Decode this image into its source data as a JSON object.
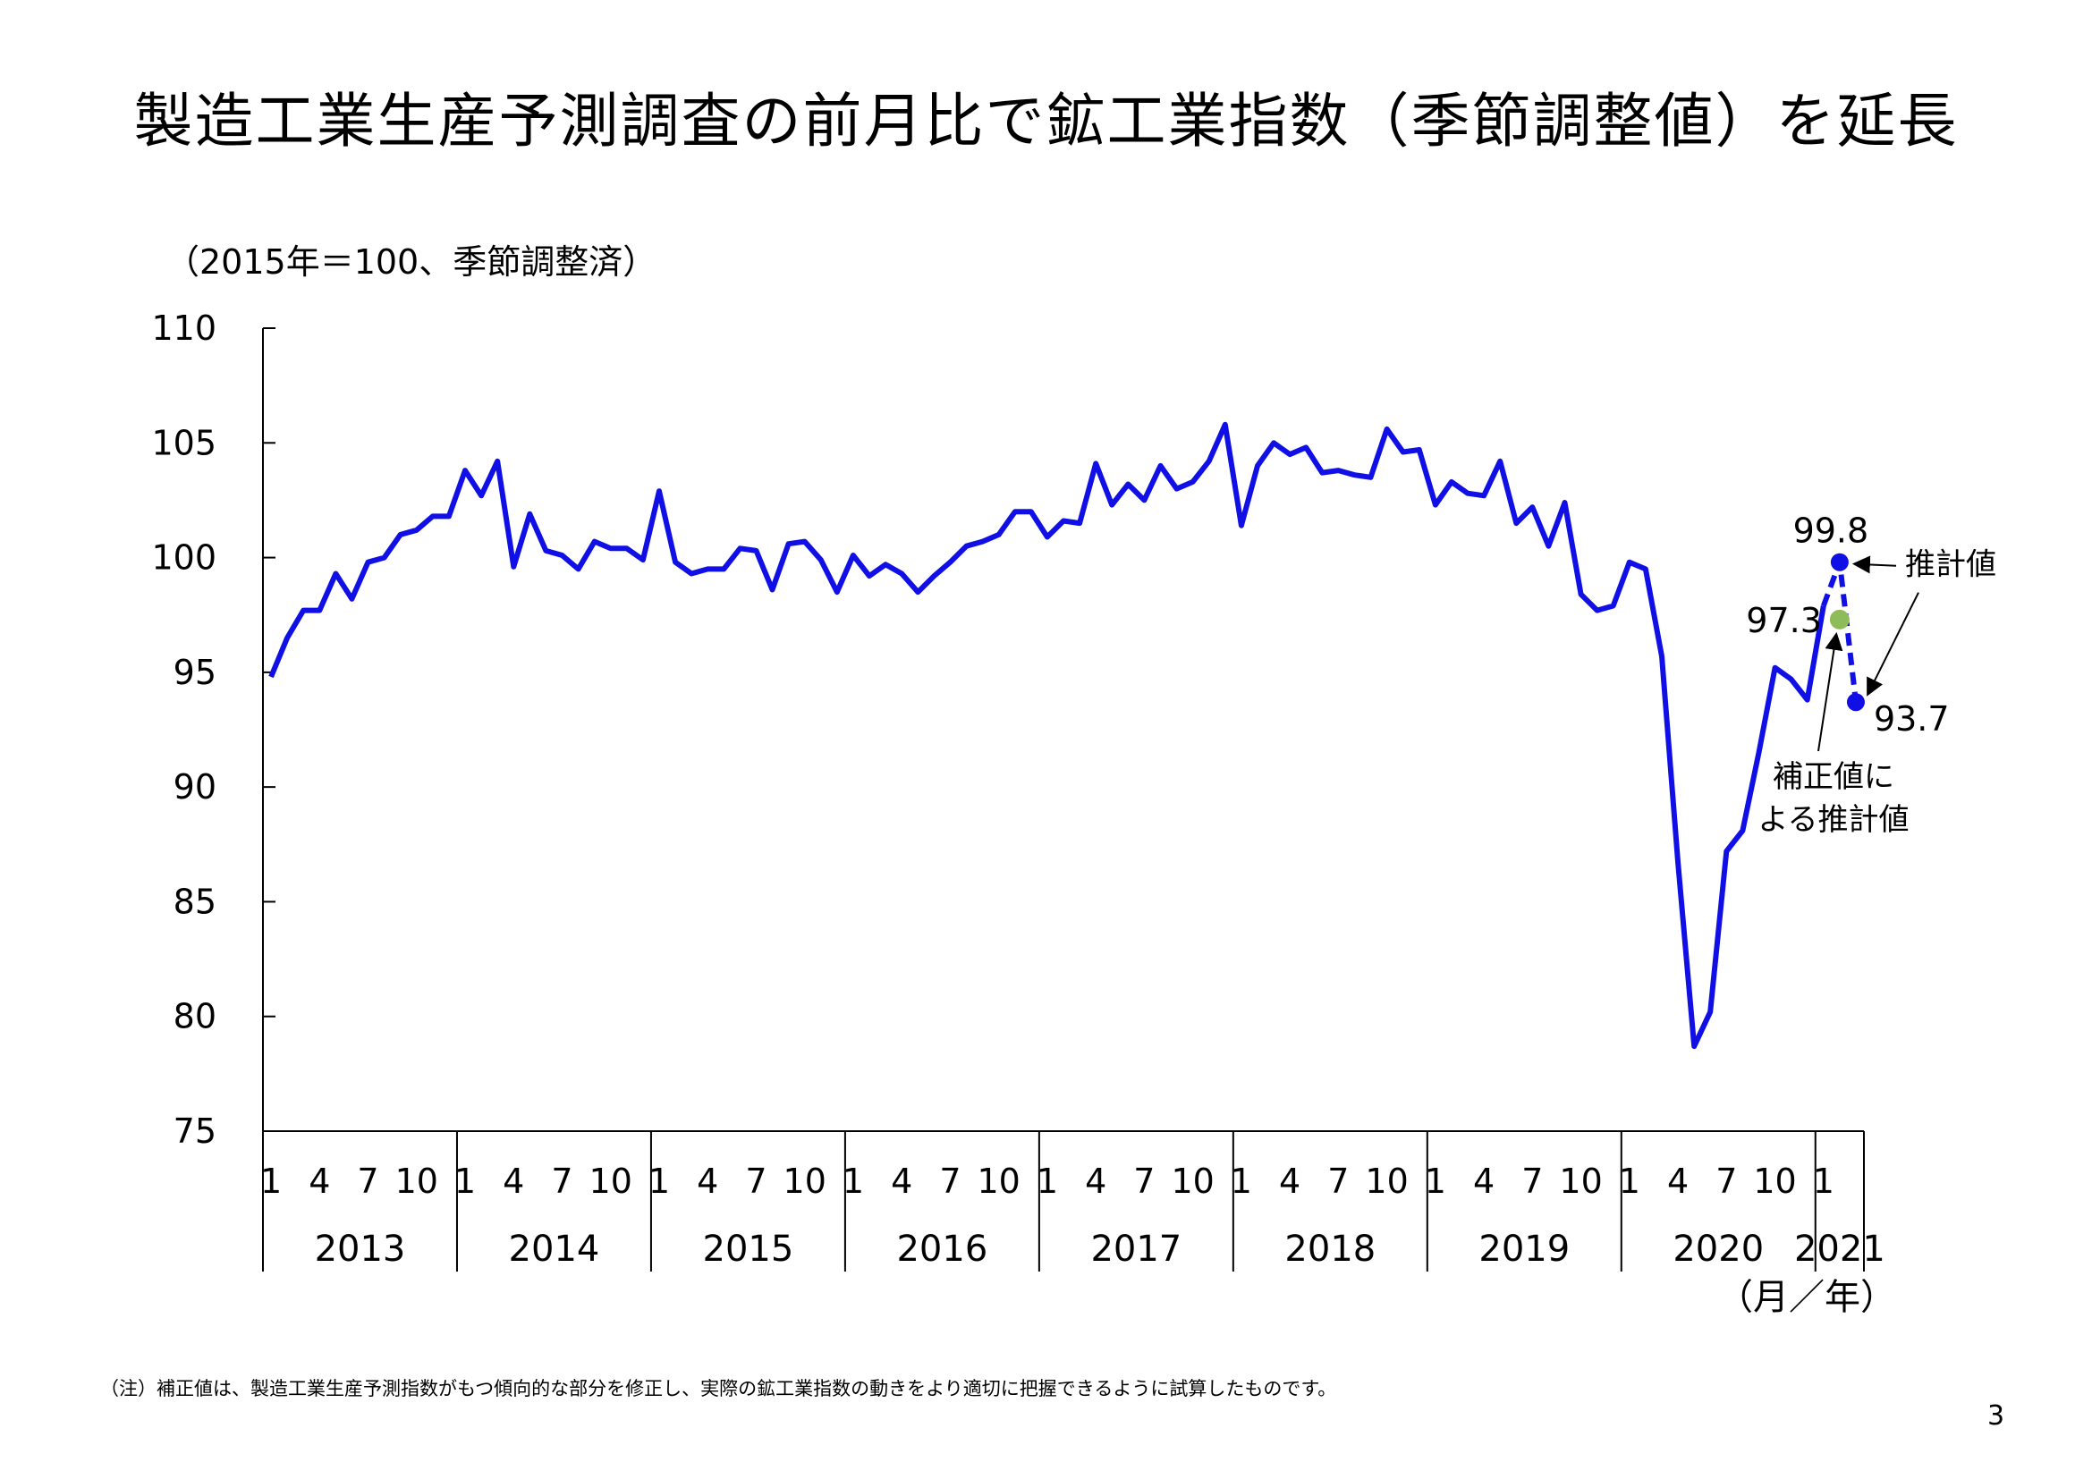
{
  "title": "製造工業生産予測調査の前月比で鉱工業指数（季節調整値）を延長",
  "unit_label": "（2015年＝100、季節調整済）",
  "note": "（注）補正値は、製造工業生産予測指数がもつ傾向的な部分を修正し、実際の鉱工業指数の動きをより適切に把握できるように試算したものです。",
  "page_number": "3",
  "colors": {
    "series": "#1010e6",
    "estimate": "#1010e6",
    "corrected": "#8fbc5a",
    "axis": "#000000"
  },
  "chart_data": {
    "type": "line",
    "ylim": [
      75,
      110
    ],
    "yticks": [
      "75",
      "80",
      "85",
      "90",
      "95",
      "100",
      "105",
      "110"
    ],
    "month_tick_labels": [
      "1",
      "4",
      "7",
      "10"
    ],
    "years": [
      "2013",
      "2014",
      "2015",
      "2016",
      "2017",
      "2018",
      "2019",
      "2020",
      "2021"
    ],
    "x_axis_unit": "（月／年）",
    "series": [
      {
        "start": "2013-01",
        "values": [
          94.8,
          96.5,
          97.7,
          97.7,
          99.3,
          98.2,
          99.8,
          100.0,
          101.0,
          101.2,
          101.8,
          101.8,
          103.8,
          102.7,
          104.2,
          99.6,
          101.9,
          100.3,
          100.1,
          99.5,
          100.7,
          100.4,
          100.4,
          99.9,
          102.9,
          99.8,
          99.3,
          99.5,
          99.5,
          100.4,
          100.3,
          98.6,
          100.6,
          100.7,
          99.9,
          98.5,
          100.1,
          99.2,
          99.7,
          99.3,
          98.5,
          99.2,
          99.8,
          100.5,
          100.7,
          101.0,
          102.0,
          102.0,
          100.9,
          101.6,
          101.5,
          104.1,
          102.3,
          103.2,
          102.5,
          104.0,
          103.0,
          103.3,
          104.2,
          105.8,
          101.4,
          104.0,
          105.0,
          104.5,
          104.8,
          103.7,
          103.8,
          103.6,
          103.5,
          105.6,
          104.6,
          104.7,
          102.3,
          103.3,
          102.8,
          102.7,
          104.2,
          101.5,
          102.2,
          100.5,
          102.4,
          98.4,
          97.7,
          97.9,
          99.8,
          99.5,
          95.7,
          86.7,
          78.7,
          80.2,
          87.2,
          88.1,
          91.5,
          95.2,
          94.7,
          93.8,
          97.9
        ]
      },
      {
        "start": "2021-01",
        "style": "estimate",
        "values": [
          97.9,
          99.8,
          93.7
        ]
      },
      {
        "start": "2021-02",
        "style": "corrected",
        "values": [
          97.3
        ]
      }
    ],
    "annotations": {
      "estimate_label": "推計値",
      "corrected_label_line1": "補正値に",
      "corrected_label_line2": "よる推計値",
      "value_99_8": "99.8",
      "value_97_3": "97.3",
      "value_93_7": "93.7"
    }
  }
}
